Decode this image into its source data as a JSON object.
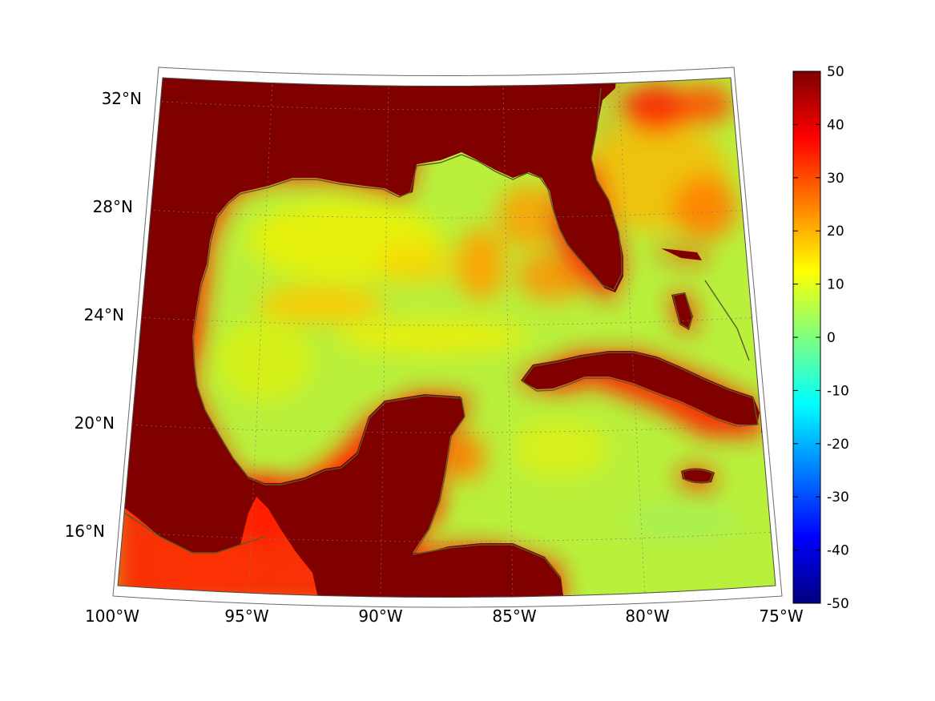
{
  "map": {
    "lon_range": [
      -100,
      -75
    ],
    "lat_range": [
      14,
      33
    ],
    "lon_labels": [
      {
        "lon": -100,
        "label": "100°W"
      },
      {
        "lon": -95,
        "label": "95°W"
      },
      {
        "lon": -90,
        "label": "90°W"
      },
      {
        "lon": -85,
        "label": "85°W"
      },
      {
        "lon": -80,
        "label": "80°W"
      },
      {
        "lon": -75,
        "label": "75°W"
      }
    ],
    "lat_labels": [
      {
        "lat": 32,
        "label": "32°N"
      },
      {
        "lat": 28,
        "label": "28°N"
      },
      {
        "lat": 24,
        "label": "24°N"
      },
      {
        "lat": 20,
        "label": "20°N"
      },
      {
        "lat": 16,
        "label": "16°N"
      }
    ],
    "grid": "dotted",
    "land_color": "#7f0000",
    "coastline_color": "#5a5a28",
    "ocean_base_color": "#b4f040"
  },
  "colorbar": {
    "min": -50,
    "max": 50,
    "ticks": [
      {
        "value": 50,
        "label": "50"
      },
      {
        "value": 40,
        "label": "40"
      },
      {
        "value": 30,
        "label": "30"
      },
      {
        "value": 20,
        "label": "20"
      },
      {
        "value": 10,
        "label": "10"
      },
      {
        "value": 0,
        "label": "0"
      },
      {
        "value": -10,
        "label": "-10"
      },
      {
        "value": -20,
        "label": "-20"
      },
      {
        "value": -30,
        "label": "-30"
      },
      {
        "value": -40,
        "label": "-40"
      },
      {
        "value": -50,
        "label": "-50"
      }
    ],
    "colormap": "jet",
    "stops": [
      "#00007f",
      "#0000ff",
      "#007fff",
      "#00ffff",
      "#7fff7f",
      "#ffff00",
      "#ff7f00",
      "#ff0000",
      "#7f0000"
    ]
  }
}
